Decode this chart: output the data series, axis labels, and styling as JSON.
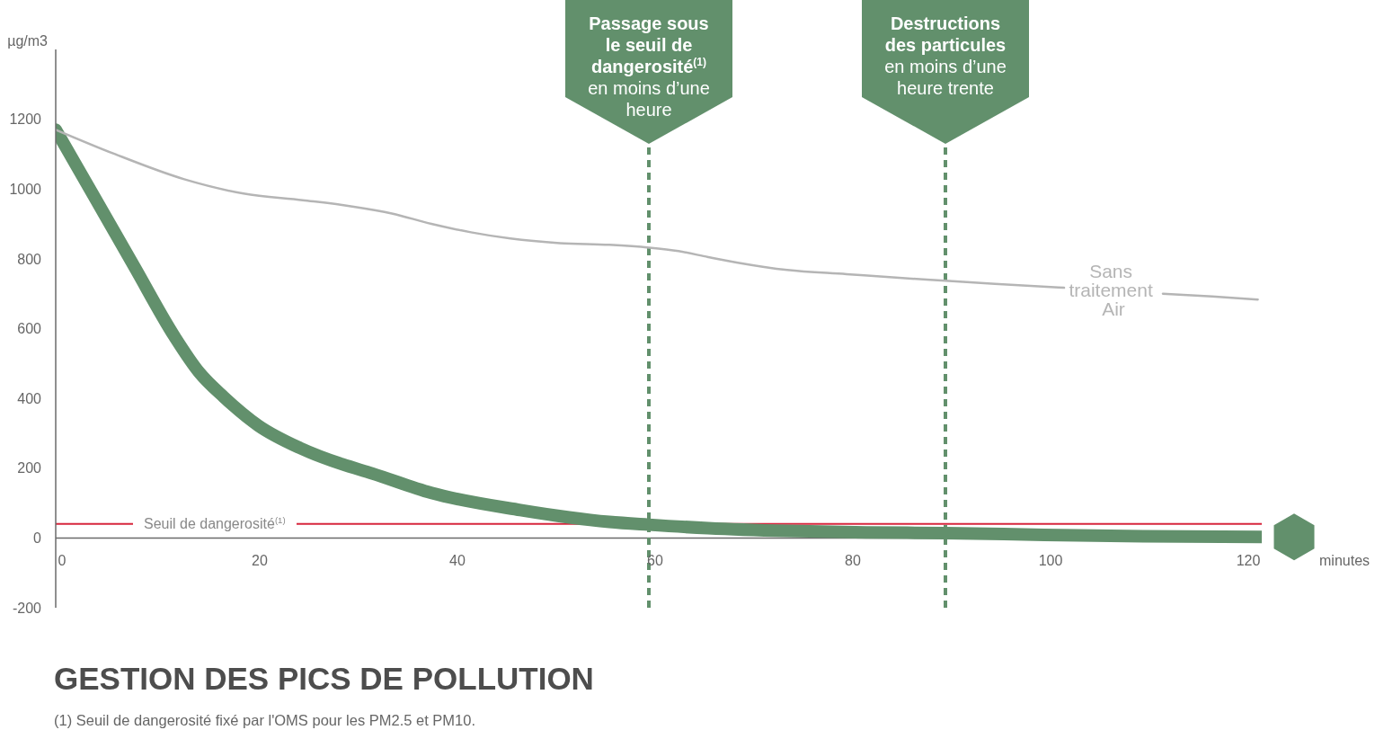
{
  "chart_data": {
    "type": "line",
    "title": "GESTION DES PICS DE POLLUTION",
    "xlabel": "minutes",
    "ylabel": "µg/m3",
    "annotations": [
      "(1) Seuil de dangerosité fixé par l'OMS pour les PM2.5 et PM10."
    ],
    "series": [
      {
        "color": "#62906c",
        "x": [
          0,
          4,
          8,
          12,
          14.5,
          17,
          20.5,
          24.7,
          29,
          32,
          38,
          47,
          56,
          60,
          66,
          74,
          82,
          90,
          100,
          110,
          122
        ],
        "values": [
          1170,
          973,
          775,
          578,
          475,
          404,
          322,
          258,
          211,
          185,
          129,
          80,
          46,
          38,
          28,
          20,
          16,
          14,
          9,
          5,
          3
        ]
      },
      {
        "name": "Sans traitement Air",
        "color": "#b5b5b5",
        "x": [
          0,
          6,
          13,
          19,
          25,
          30,
          34,
          38,
          42,
          46,
          51,
          56,
          60,
          63,
          66,
          69,
          74,
          80,
          85,
          90,
          95,
          102,
          107,
          112,
          117,
          121.6
        ],
        "values": [
          1170,
          1100,
          1028,
          987,
          968,
          950,
          930,
          900,
          876,
          858,
          845,
          840,
          832,
          822,
          805,
          789,
          768,
          756,
          746,
          737,
          728,
          717,
          null,
          700,
          692,
          683
        ]
      }
    ],
    "xlim": [
      0,
      122
    ],
    "xticks": [
      0,
      20,
      40,
      60,
      80,
      100,
      120
    ],
    "ylim": [
      -200,
      1400
    ],
    "yticks": [
      -200,
      0,
      200,
      400,
      600,
      800,
      1000,
      1200
    ],
    "ref_lines": [
      {
        "axis": "y",
        "value": 40,
        "label": "Seuil de dangerosité$^{(1)}$",
        "color": "#d7263d"
      },
      {
        "axis": "x",
        "value": 60,
        "label": "Passage sous le seuil de dangerosité$^{(1)}$\nen moins d’une heure",
        "color": "#62906c",
        "line_style": "dashed"
      },
      {
        "axis": "x",
        "value": 90,
        "label": "Destructions des particules\nen moins d’une heure trente",
        "color": "#62906c",
        "line_style": "dashed"
      }
    ]
  }
}
